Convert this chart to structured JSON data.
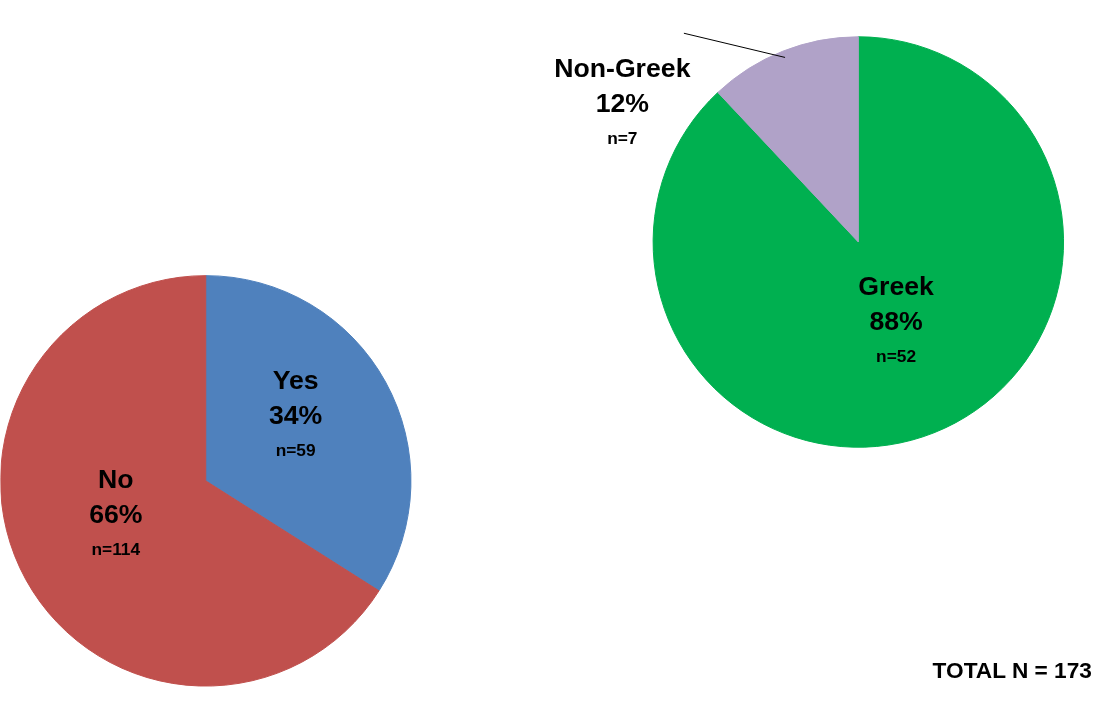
{
  "chart_data": [
    {
      "type": "pie",
      "categories": [
        "Yes",
        "No"
      ],
      "values": [
        34,
        66
      ],
      "colors": [
        "#4f81bd",
        "#c0504d"
      ],
      "value_labels": [
        "34%",
        "66%"
      ],
      "annotations": [
        "n=59",
        "n=114"
      ]
    },
    {
      "type": "pie",
      "categories": [
        "Greek",
        "Non-Greek"
      ],
      "values": [
        88,
        12
      ],
      "colors": [
        "#00b050",
        "#b0a2c8"
      ],
      "value_labels": [
        "88%",
        "12%"
      ],
      "annotations": [
        "n=52",
        "n=7",
        "TOTAL N = 173"
      ]
    }
  ]
}
